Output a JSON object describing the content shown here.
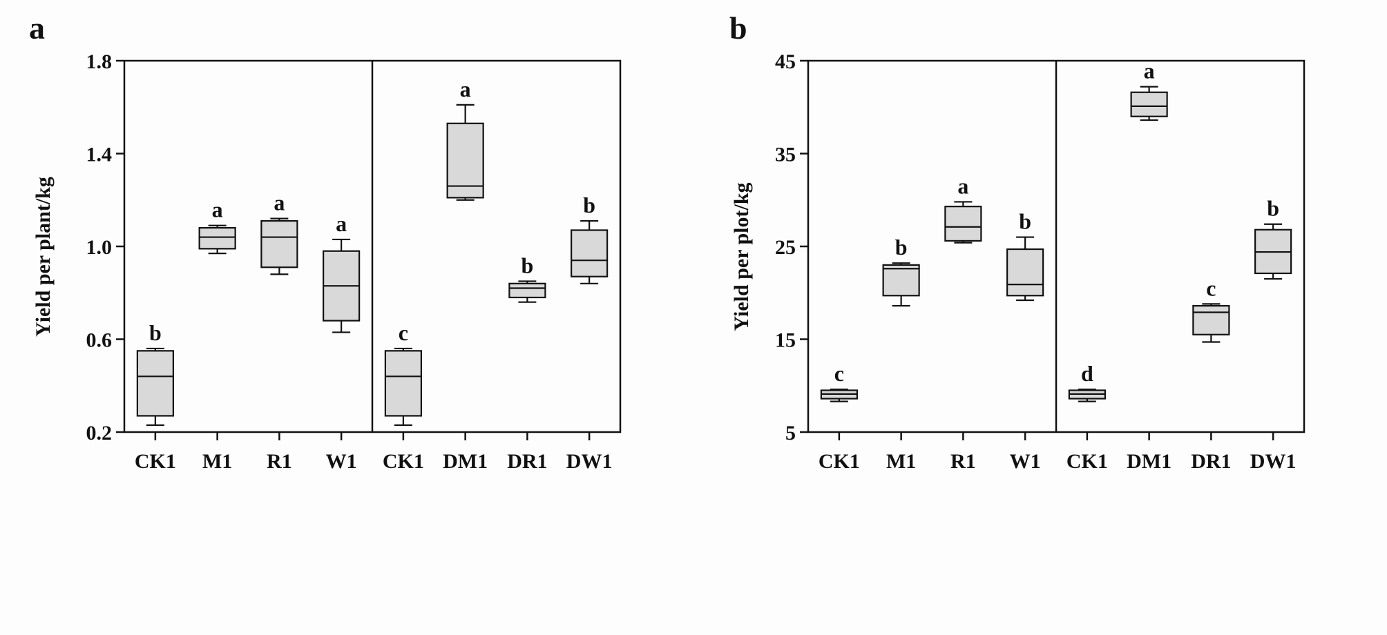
{
  "chart_data": [
    {
      "panel": "a",
      "type": "box",
      "ylabel": "Yield per plant/kg",
      "ylim": [
        0.2,
        1.8
      ],
      "yticks": [
        0.2,
        0.6,
        1.0,
        1.4,
        1.8
      ],
      "ytick_labels": [
        "0.2",
        "0.6",
        "1.0",
        "1.4",
        "1.8"
      ],
      "groups": [
        {
          "categories": [
            "CK1",
            "M1",
            "R1",
            "W1"
          ],
          "boxes": [
            {
              "min": 0.23,
              "q1": 0.27,
              "median": 0.44,
              "q3": 0.55,
              "max": 0.56,
              "letter": "b"
            },
            {
              "min": 0.97,
              "q1": 0.99,
              "median": 1.04,
              "q3": 1.08,
              "max": 1.09,
              "letter": "a"
            },
            {
              "min": 0.88,
              "q1": 0.91,
              "median": 1.04,
              "q3": 1.11,
              "max": 1.12,
              "letter": "a"
            },
            {
              "min": 0.63,
              "q1": 0.68,
              "median": 0.83,
              "q3": 0.98,
              "max": 1.03,
              "letter": "a"
            }
          ]
        },
        {
          "categories": [
            "CK1",
            "DM1",
            "DR1",
            "DW1"
          ],
          "boxes": [
            {
              "min": 0.23,
              "q1": 0.27,
              "median": 0.44,
              "q3": 0.55,
              "max": 0.56,
              "letter": "c"
            },
            {
              "min": 1.2,
              "q1": 1.21,
              "median": 1.26,
              "q3": 1.53,
              "max": 1.61,
              "letter": "a"
            },
            {
              "min": 0.76,
              "q1": 0.78,
              "median": 0.82,
              "q3": 0.84,
              "max": 0.85,
              "letter": "b"
            },
            {
              "min": 0.84,
              "q1": 0.87,
              "median": 0.94,
              "q3": 1.07,
              "max": 1.11,
              "letter": "b"
            }
          ]
        }
      ]
    },
    {
      "panel": "b",
      "type": "box",
      "ylabel": "Yield per plot/kg",
      "ylim": [
        5,
        45
      ],
      "yticks": [
        5,
        15,
        25,
        35,
        45
      ],
      "ytick_labels": [
        "5",
        "15",
        "25",
        "35",
        "45"
      ],
      "groups": [
        {
          "categories": [
            "CK1",
            "M1",
            "R1",
            "W1"
          ],
          "boxes": [
            {
              "min": 8.3,
              "q1": 8.6,
              "median": 9.1,
              "q3": 9.5,
              "max": 9.6,
              "letter": "c"
            },
            {
              "min": 18.6,
              "q1": 19.7,
              "median": 22.6,
              "q3": 23.0,
              "max": 23.2,
              "letter": "b"
            },
            {
              "min": 25.4,
              "q1": 25.6,
              "median": 27.1,
              "q3": 29.3,
              "max": 29.8,
              "letter": "a"
            },
            {
              "min": 19.2,
              "q1": 19.7,
              "median": 20.9,
              "q3": 24.7,
              "max": 26.0,
              "letter": "b"
            }
          ]
        },
        {
          "categories": [
            "CK1",
            "DM1",
            "DR1",
            "DW1"
          ],
          "boxes": [
            {
              "min": 8.3,
              "q1": 8.6,
              "median": 9.1,
              "q3": 9.5,
              "max": 9.6,
              "letter": "d"
            },
            {
              "min": 38.6,
              "q1": 39.0,
              "median": 40.1,
              "q3": 41.6,
              "max": 42.2,
              "letter": "a"
            },
            {
              "min": 14.7,
              "q1": 15.5,
              "median": 17.9,
              "q3": 18.6,
              "max": 18.8,
              "letter": "c"
            },
            {
              "min": 21.5,
              "q1": 22.1,
              "median": 24.4,
              "q3": 26.8,
              "max": 27.4,
              "letter": "b"
            }
          ]
        }
      ]
    }
  ]
}
